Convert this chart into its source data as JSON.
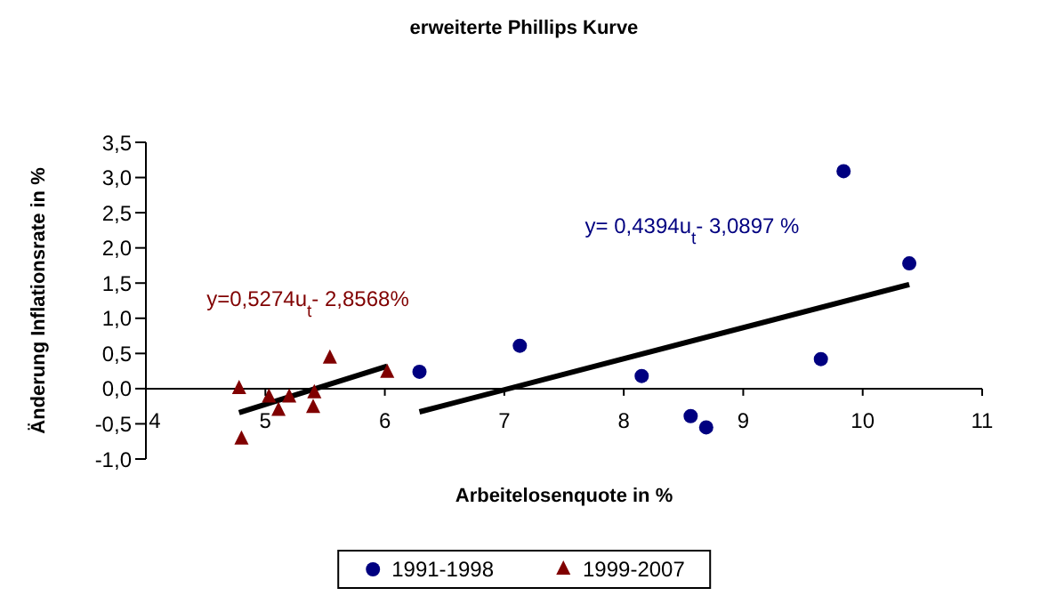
{
  "chart_data": {
    "type": "scatter",
    "title": "erweiterte Phillips Kurve",
    "xlabel": "Arbeitelosenquote in %",
    "ylabel": "Änderung Inflationsrate in %",
    "xlim": [
      4,
      11
    ],
    "xticks": [
      4,
      5,
      6,
      7,
      8,
      9,
      10,
      11
    ],
    "ylim": [
      -1,
      3.5
    ],
    "yticks": [
      {
        "value": -1,
        "label": "-1,0"
      },
      {
        "value": -0.5,
        "label": "-0,5"
      },
      {
        "value": 0,
        "label": "0,0"
      },
      {
        "value": 0.5,
        "label": "0,5"
      },
      {
        "value": 1,
        "label": "1,0"
      },
      {
        "value": 1.5,
        "label": "1,5"
      },
      {
        "value": 2,
        "label": "2,0"
      },
      {
        "value": 2.5,
        "label": "2,5"
      },
      {
        "value": 3,
        "label": "3,0"
      },
      {
        "value": 3.5,
        "label": "3,5"
      }
    ],
    "grid": false,
    "legend": "bottom",
    "series": [
      {
        "name": "1991-1998",
        "type": "scatter",
        "marker": "circle",
        "color": "#000080",
        "x": [
          6.29,
          7.13,
          8.15,
          8.56,
          8.69,
          9.65,
          9.84,
          10.39
        ],
        "values": [
          0.24,
          0.61,
          0.18,
          -0.39,
          -0.55,
          0.42,
          3.09,
          1.78
        ]
      },
      {
        "name": "1999-2007",
        "type": "scatter",
        "marker": "triangle",
        "color": "#800000",
        "x": [
          4.78,
          4.8,
          5.03,
          5.11,
          5.2,
          5.4,
          5.41,
          5.54,
          6.02
        ],
        "values": [
          0.0,
          -0.72,
          -0.12,
          -0.31,
          -0.12,
          -0.27,
          -0.06,
          0.43,
          0.23
        ]
      },
      {
        "type": "line",
        "color": "#000000",
        "x": [
          4.78,
          6.02
        ],
        "values": [
          -0.34,
          0.32
        ]
      },
      {
        "type": "line",
        "color": "#000000",
        "x": [
          6.29,
          10.39
        ],
        "values": [
          -0.33,
          1.48
        ]
      }
    ],
    "annotations": [
      "y=0,5274u$_{t}$- 2,8568%",
      "y= 0,4394u$_{t}$- 3,0897 %"
    ]
  }
}
